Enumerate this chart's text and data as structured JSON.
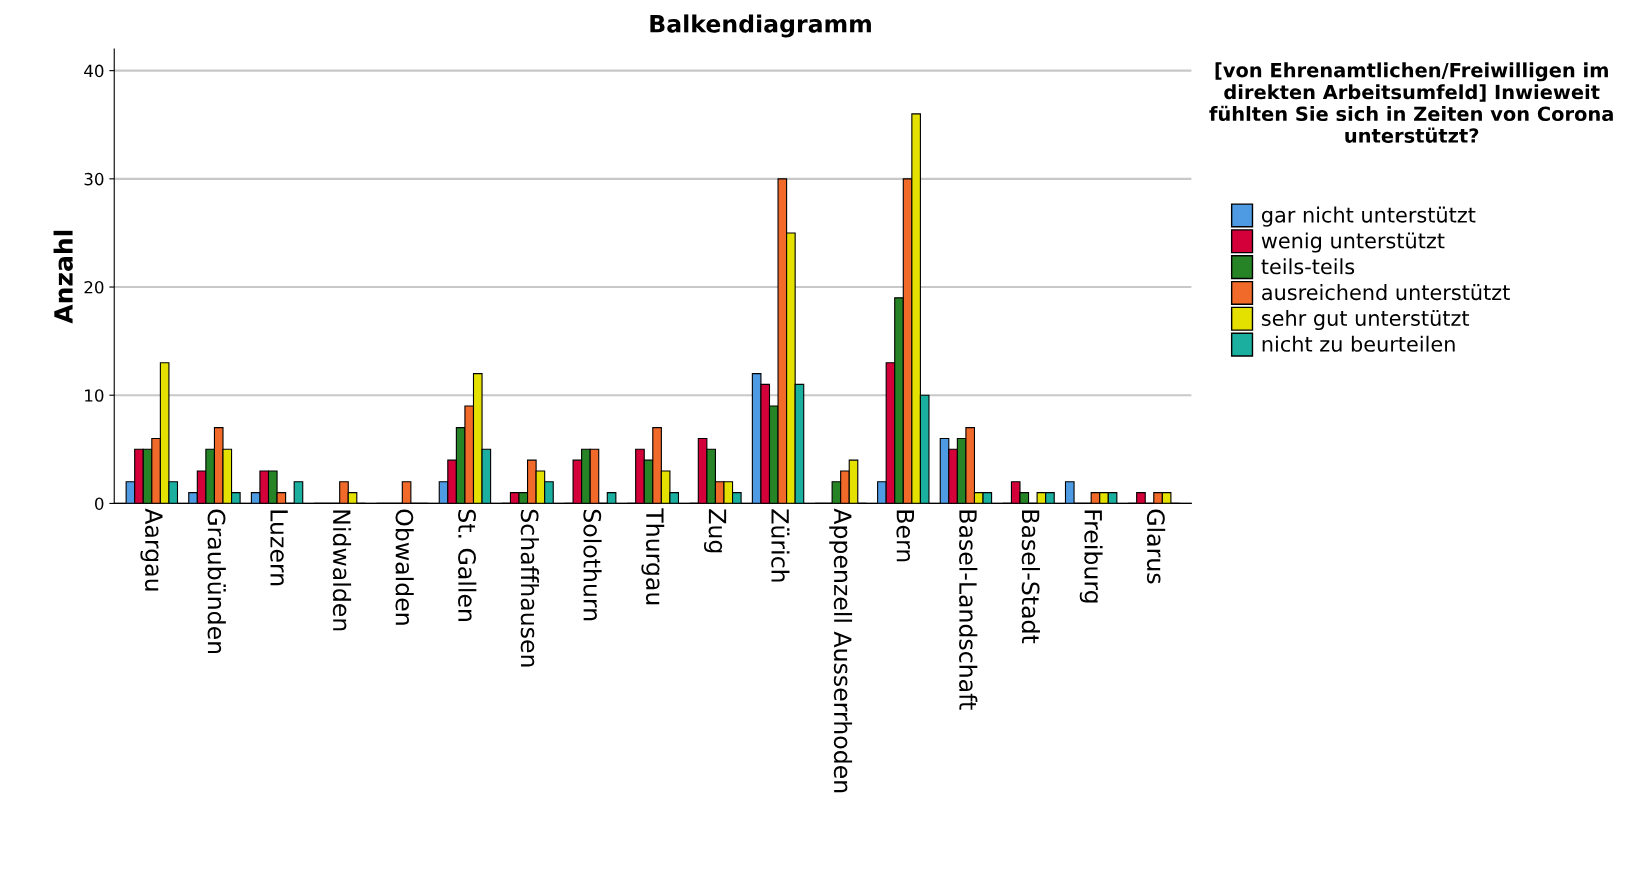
{
  "chart_data": {
    "type": "bar",
    "title": "Balkendiagramm",
    "ylabel": "Anzahl",
    "legend_title": "[von Ehrenamtlichen/Freiwilligen im direkten Arbeitsumfeld] Inwieweit fühlten Sie sich in Zeiten von Corona unterstützt?",
    "categories": [
      "Aargau",
      "Graubünden",
      "Luzern",
      "Nidwalden",
      "Obwalden",
      "St. Gallen",
      "Schaffhausen",
      "Solothurn",
      "Thurgau",
      "Zug",
      "Zürich",
      "Appenzell Ausserrhoden",
      "Bern",
      "Basel-Landschaft",
      "Basel-Stadt",
      "Freiburg",
      "Glarus"
    ],
    "series": [
      {
        "name": "gar nicht unterstützt",
        "color": "#4f9be3",
        "values": [
          2,
          1,
          1,
          0,
          0,
          2,
          0,
          0,
          0,
          0,
          12,
          0,
          2,
          6,
          0,
          2,
          0
        ]
      },
      {
        "name": "wenig unterstützt",
        "color": "#d4003a",
        "values": [
          5,
          3,
          3,
          0,
          0,
          4,
          1,
          4,
          5,
          6,
          11,
          0,
          13,
          5,
          2,
          0,
          1
        ]
      },
      {
        "name": "teils-teils",
        "color": "#268426",
        "values": [
          5,
          5,
          3,
          0,
          0,
          7,
          1,
          5,
          4,
          5,
          9,
          2,
          19,
          6,
          1,
          0,
          0
        ]
      },
      {
        "name": "ausreichend unterstützt",
        "color": "#f26a2a",
        "values": [
          6,
          7,
          1,
          2,
          2,
          9,
          4,
          5,
          7,
          2,
          30,
          3,
          30,
          7,
          0,
          1,
          1
        ]
      },
      {
        "name": "sehr gut unterstützt",
        "color": "#e4e000",
        "values": [
          13,
          5,
          0,
          1,
          0,
          12,
          3,
          0,
          3,
          2,
          25,
          4,
          36,
          1,
          1,
          1,
          1
        ]
      },
      {
        "name": "nicht zu beurteilen",
        "color": "#1aaf9f",
        "values": [
          2,
          1,
          2,
          0,
          0,
          5,
          2,
          1,
          1,
          1,
          11,
          0,
          10,
          1,
          1,
          1,
          0
        ]
      }
    ],
    "ylim": [
      0,
      42
    ],
    "yticks": [
      0,
      10,
      20,
      30,
      40
    ],
    "grid": "y",
    "legend": "right"
  }
}
